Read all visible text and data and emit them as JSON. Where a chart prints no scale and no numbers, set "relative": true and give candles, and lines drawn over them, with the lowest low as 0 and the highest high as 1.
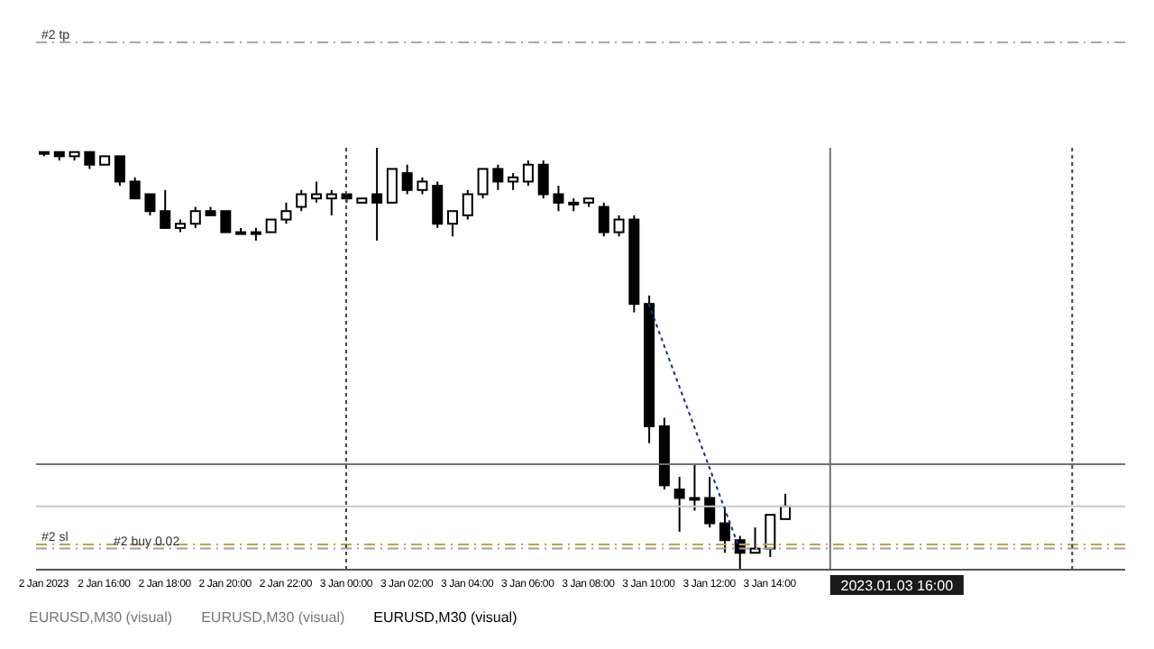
{
  "chart_data": {
    "type": "candlestick",
    "relative": true,
    "tick_labels": "x",
    "color": "#000000",
    "x": [
      "2023-01-02T14:00",
      "2023-01-02T14:30",
      "2023-01-02T15:00",
      "2023-01-02T15:30",
      "2023-01-02T16:00",
      "2023-01-02T16:30",
      "2023-01-02T17:00",
      "2023-01-02T17:30",
      "2023-01-02T18:00",
      "2023-01-02T18:30",
      "2023-01-02T19:00",
      "2023-01-02T19:30",
      "2023-01-02T20:00",
      "2023-01-02T20:30",
      "2023-01-02T21:00",
      "2023-01-02T21:30",
      "2023-01-02T22:00",
      "2023-01-02T22:30",
      "2023-01-02T23:00",
      "2023-01-02T23:30",
      "2023-01-03T00:00",
      "2023-01-03T00:30",
      "2023-01-03T01:00",
      "2023-01-03T01:30",
      "2023-01-03T02:00",
      "2023-01-03T02:30",
      "2023-01-03T03:00",
      "2023-01-03T03:30",
      "2023-01-03T04:00",
      "2023-01-03T04:30",
      "2023-01-03T05:00",
      "2023-01-03T05:30",
      "2023-01-03T06:00",
      "2023-01-03T06:30",
      "2023-01-03T07:00",
      "2023-01-03T07:30",
      "2023-01-03T08:00",
      "2023-01-03T08:30",
      "2023-01-03T09:00",
      "2023-01-03T09:30",
      "2023-01-03T10:00",
      "2023-01-03T10:30",
      "2023-01-03T11:00",
      "2023-01-03T11:30",
      "2023-01-03T12:00",
      "2023-01-03T12:30",
      "2023-01-03T13:00",
      "2023-01-03T13:30",
      "2023-01-03T14:00",
      "2023-01-03T14:30"
    ],
    "ohlc": [
      [
        0.99,
        0.99,
        0.98,
        0.99
      ],
      [
        0.99,
        0.99,
        0.97,
        0.98
      ],
      [
        0.98,
        0.99,
        0.97,
        0.99
      ],
      [
        0.99,
        0.99,
        0.95,
        0.96
      ],
      [
        0.96,
        0.98,
        0.96,
        0.98
      ],
      [
        0.98,
        0.98,
        0.91,
        0.92
      ],
      [
        0.92,
        0.93,
        0.88,
        0.88
      ],
      [
        0.89,
        0.89,
        0.84,
        0.85
      ],
      [
        0.85,
        0.9,
        0.81,
        0.81
      ],
      [
        0.81,
        0.83,
        0.8,
        0.82
      ],
      [
        0.82,
        0.86,
        0.81,
        0.85
      ],
      [
        0.85,
        0.86,
        0.84,
        0.84
      ],
      [
        0.85,
        0.85,
        0.8,
        0.8
      ],
      [
        0.8,
        0.81,
        0.8,
        0.8
      ],
      [
        0.8,
        0.81,
        0.78,
        0.8
      ],
      [
        0.8,
        0.83,
        0.8,
        0.83
      ],
      [
        0.83,
        0.87,
        0.82,
        0.85
      ],
      [
        0.86,
        0.9,
        0.85,
        0.89
      ],
      [
        0.88,
        0.92,
        0.87,
        0.89
      ],
      [
        0.88,
        0.9,
        0.84,
        0.89
      ],
      [
        0.89,
        0.89,
        0.87,
        0.88
      ],
      [
        0.87,
        0.88,
        0.87,
        0.88
      ],
      [
        0.89,
        1,
        0.78,
        0.87
      ],
      [
        0.87,
        0.95,
        0.87,
        0.95
      ],
      [
        0.94,
        0.96,
        0.89,
        0.9
      ],
      [
        0.9,
        0.93,
        0.89,
        0.92
      ],
      [
        0.91,
        0.92,
        0.81,
        0.82
      ],
      [
        0.82,
        0.85,
        0.79,
        0.85
      ],
      [
        0.84,
        0.9,
        0.83,
        0.89
      ],
      [
        0.89,
        0.95,
        0.88,
        0.95
      ],
      [
        0.95,
        0.96,
        0.9,
        0.92
      ],
      [
        0.92,
        0.94,
        0.9,
        0.93
      ],
      [
        0.92,
        0.97,
        0.91,
        0.96
      ],
      [
        0.96,
        0.97,
        0.88,
        0.89
      ],
      [
        0.89,
        0.91,
        0.85,
        0.87
      ],
      [
        0.87,
        0.88,
        0.85,
        0.87
      ],
      [
        0.87,
        0.88,
        0.86,
        0.88
      ],
      [
        0.86,
        0.87,
        0.79,
        0.8
      ],
      [
        0.8,
        0.84,
        0.79,
        0.83
      ],
      [
        0.83,
        0.84,
        0.61,
        0.63
      ],
      [
        0.63,
        0.65,
        0.3,
        0.34
      ],
      [
        0.34,
        0.36,
        0.19,
        0.2
      ],
      [
        0.19,
        0.22,
        0.09,
        0.17
      ],
      [
        0.17,
        0.25,
        0.14,
        0.17
      ],
      [
        0.17,
        0.22,
        0.1,
        0.11
      ],
      [
        0.11,
        0.15,
        0.04,
        0.07
      ],
      [
        0.07,
        0.08,
        0,
        0.04
      ],
      [
        0.04,
        0.1,
        0.04,
        0.05
      ],
      [
        0.05,
        0.13,
        0.03,
        0.13
      ],
      [
        0.12,
        0.18,
        0.12,
        0.15
      ]
    ],
    "series": [
      {
        "type": "line",
        "x": [
          "2023-01-03T10:00",
          "2023-01-03T13:00"
        ],
        "values": [
          0.63,
          0.05
        ],
        "color": "#1f2f8f",
        "line_style": "dotted",
        "marker": "none"
      }
    ],
    "xlim": [
      "2023-01-02T13:45",
      "2023-01-04T01:45"
    ],
    "xticks": [
      {
        "value": "2023-01-02T14:00",
        "label": "2 Jan 2023"
      },
      {
        "value": "2023-01-02T16:00",
        "label": "2 Jan 16:00"
      },
      {
        "value": "2023-01-02T18:00",
        "label": "2 Jan 18:00"
      },
      {
        "value": "2023-01-02T20:00",
        "label": "2 Jan 20:00"
      },
      {
        "value": "2023-01-02T22:00",
        "label": "2 Jan 22:00"
      },
      {
        "value": "2023-01-03T00:00",
        "label": "3 Jan 00:00"
      },
      {
        "value": "2023-01-03T02:00",
        "label": "3 Jan 02:00"
      },
      {
        "value": "2023-01-03T04:00",
        "label": "3 Jan 04:00"
      },
      {
        "value": "2023-01-03T06:00",
        "label": "3 Jan 06:00"
      },
      {
        "value": "2023-01-03T08:00",
        "label": "3 Jan 08:00"
      },
      {
        "value": "2023-01-03T10:00",
        "label": "3 Jan 10:00"
      },
      {
        "value": "2023-01-03T12:00",
        "label": "3 Jan 12:00"
      },
      {
        "value": "2023-01-03T14:00",
        "label": "3 Jan 14:00"
      }
    ],
    "ref_lines": [
      {
        "axis": "y",
        "value": 1.25,
        "label": "#2 tp",
        "color": "#b0a890",
        "line_style": "dashed"
      },
      {
        "axis": "y",
        "value": 0.06,
        "label": "#2 sl",
        "color": "#c8a040",
        "line_style": "dashed"
      },
      {
        "axis": "y",
        "value": 0.05,
        "label": "#2 buy 0.02",
        "color": "#a0a0a0",
        "line_style": "dashed"
      },
      {
        "axis": "y",
        "value": 0.25,
        "color": "#707070",
        "line_style": "solid"
      },
      {
        "axis": "y",
        "value": 0.15,
        "color": "#c8c8c8",
        "line_style": "solid"
      },
      {
        "axis": "x",
        "value": "2023-01-03T00:00",
        "color": "#404040",
        "line_style": "dotted"
      },
      {
        "axis": "x",
        "value": "2023-01-04T00:00",
        "color": "#404040",
        "line_style": "dotted"
      },
      {
        "axis": "x",
        "value": "2023-01-03T16:00",
        "label": "2023.01.03 16:00",
        "color": "#707070",
        "line_style": "solid"
      }
    ],
    "annotations": [
      "EURUSD,M30 (visual)",
      "EURUSD,M30 (visual)",
      "EURUSD,M30 (visual)"
    ]
  }
}
